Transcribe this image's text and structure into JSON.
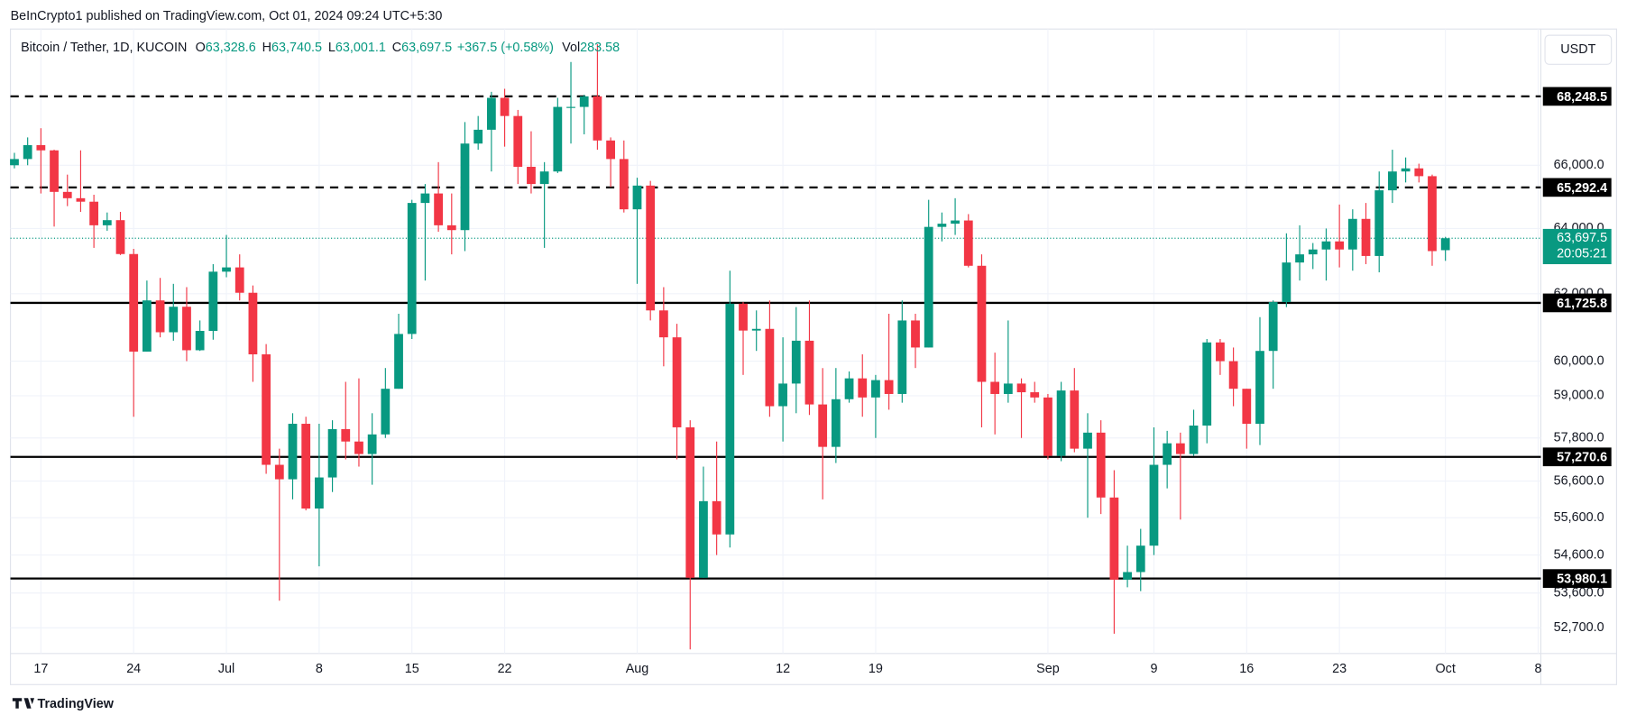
{
  "header": "BeInCrypto1 published on TradingView.com, Oct 01, 2024 09:24 UTC+5:30",
  "footer": "TradingView",
  "currency_button": "USDT",
  "chart_data": {
    "type": "candlestick",
    "symbol": "Bitcoin / Tether, 1D, KUCOIN",
    "legend": [
      {
        "key": "O",
        "value": 63328.6,
        "label": "63,328.6"
      },
      {
        "key": "H",
        "value": 63740.5,
        "label": "63,740.5"
      },
      {
        "key": "L",
        "value": 63001.1,
        "label": "63,001.1"
      },
      {
        "key": "C",
        "value": 63697.5,
        "label": "63,697.5"
      }
    ],
    "change": "+367.5 (+0.58%)",
    "volume_key": "Vol",
    "volume": 283.58,
    "up_color": "#089981",
    "down_color": "#f23645",
    "log_scale": true,
    "grid": true,
    "xlim": [
      -0.3,
      115.2
    ],
    "ylim": [
      52100,
      70450
    ],
    "xticks": [
      {
        "value": 2,
        "label": "17"
      },
      {
        "value": 9,
        "label": "24"
      },
      {
        "value": 16,
        "label": "Jul"
      },
      {
        "value": 23,
        "label": "8"
      },
      {
        "value": 30,
        "label": "15"
      },
      {
        "value": 37,
        "label": "22"
      },
      {
        "value": 47,
        "label": "Aug"
      },
      {
        "value": 58,
        "label": "12"
      },
      {
        "value": 65,
        "label": "19"
      },
      {
        "value": 78,
        "label": "Sep"
      },
      {
        "value": 86,
        "label": "9"
      },
      {
        "value": 93,
        "label": "16"
      },
      {
        "value": 100,
        "label": "23"
      },
      {
        "value": 108,
        "label": "Oct"
      },
      {
        "value": 115,
        "label": "8"
      }
    ],
    "yticks": [
      {
        "value": 66000,
        "label": "66,000.0"
      },
      {
        "value": 64000,
        "label": "64,000.0"
      },
      {
        "value": 62000,
        "label": "62,000.0"
      },
      {
        "value": 60000,
        "label": "60,000.0"
      },
      {
        "value": 59000,
        "label": "59,000.0"
      },
      {
        "value": 57800,
        "label": "57,800.0"
      },
      {
        "value": 56600,
        "label": "56,600.0"
      },
      {
        "value": 55600,
        "label": "55,600.0"
      },
      {
        "value": 54600,
        "label": "54,600.0"
      },
      {
        "value": 53600,
        "label": "53,600.0"
      },
      {
        "value": 52700,
        "label": "52,700.0"
      }
    ],
    "levels": [
      {
        "value": 68248.5,
        "label": "68,248.5",
        "style": "dashed"
      },
      {
        "value": 65292.4,
        "label": "65,292.4",
        "style": "dashed"
      },
      {
        "value": 61725.8,
        "label": "61,725.8",
        "style": "solid"
      },
      {
        "value": 57270.6,
        "label": "57,270.6",
        "style": "solid"
      },
      {
        "value": 53980.1,
        "label": "53,980.1",
        "style": "solid"
      }
    ],
    "last_price": {
      "value": 63697.5,
      "label": "63,697.5",
      "countdown": "20:05:21"
    },
    "open": [
      66000,
      66200,
      66650,
      66480,
      65150,
      64950,
      64840,
      64100,
      64260,
      63210,
      60280,
      61800,
      60850,
      61610,
      60320,
      60890,
      62670,
      62800,
      62030,
      60200,
      57050,
      56650,
      58200,
      55850,
      56700,
      58050,
      57700,
      57350,
      57900,
      59200,
      60800,
      64800,
      65100,
      64100,
      63950,
      66700,
      67150,
      68200,
      67600,
      65950,
      65400,
      65800,
      67900,
      67900,
      68250,
      66800,
      66200,
      64600,
      65350,
      61500,
      60700,
      58100,
      54000,
      56050,
      55150,
      61700,
      60900,
      60950,
      58700,
      59350,
      60600,
      58750,
      57550,
      58900,
      59500,
      58950,
      59450,
      59050,
      61200,
      60400,
      64050,
      64150,
      64250,
      62850,
      59400,
      59050,
      59350,
      59100,
      58950,
      57300,
      59150,
      57500,
      57950,
      56150,
      53950,
      54150,
      54850,
      57050,
      57650,
      57350,
      58150,
      60550,
      60000,
      59200,
      58200,
      60300,
      61750,
      62950,
      63200,
      63350,
      63600,
      63350,
      64300,
      63150,
      65200,
      65800,
      65900,
      65650,
      63328.6
    ],
    "high": [
      66400,
      66900,
      67200,
      66500,
      65700,
      66480,
      65060,
      64500,
      64520,
      63370,
      62400,
      62480,
      62300,
      62200,
      61200,
      62900,
      63800,
      63200,
      62250,
      60500,
      57500,
      58500,
      58400,
      58200,
      58300,
      59400,
      59500,
      58500,
      59800,
      61400,
      64900,
      65400,
      66100,
      65100,
      67400,
      67600,
      68400,
      68500,
      67800,
      67100,
      66100,
      68200,
      69400,
      68300,
      70000,
      66900,
      66800,
      65600,
      65500,
      62200,
      61100,
      58300,
      57000,
      57700,
      62700,
      61750,
      61500,
      61800,
      60700,
      61600,
      61800,
      59800,
      59800,
      59700,
      60200,
      59600,
      61400,
      61800,
      61400,
      64900,
      64500,
      64950,
      64450,
      63200,
      60250,
      61200,
      59500,
      59400,
      59050,
      59400,
      59800,
      58500,
      58300,
      56900,
      54850,
      55300,
      58100,
      58000,
      57950,
      58600,
      60650,
      60650,
      60400,
      59200,
      61300,
      61800,
      63850,
      64100,
      63550,
      64000,
      64750,
      64600,
      64800,
      65800,
      66500,
      66250,
      66050,
      65700,
      63740.5
    ],
    "low": [
      65900,
      66000,
      65100,
      64060,
      64700,
      64520,
      63400,
      63930,
      63180,
      58400,
      60280,
      60700,
      60600,
      60000,
      60300,
      60630,
      62500,
      61800,
      59400,
      56800,
      53400,
      56100,
      55800,
      54300,
      56300,
      57200,
      57000,
      56500,
      57800,
      59200,
      60650,
      62400,
      63900,
      63200,
      63300,
      66500,
      65800,
      66600,
      65400,
      65100,
      63400,
      65750,
      66700,
      67000,
      66500,
      65300,
      64500,
      62300,
      61200,
      59850,
      57200,
      52150,
      54000,
      54600,
      54800,
      59600,
      60300,
      58400,
      57700,
      58500,
      58450,
      56100,
      57100,
      58800,
      58400,
      57800,
      58600,
      58800,
      59800,
      60400,
      63600,
      63800,
      62800,
      58100,
      57900,
      58800,
      57800,
      58800,
      57200,
      57150,
      57400,
      55600,
      55700,
      52550,
      53750,
      53650,
      54600,
      56400,
      55550,
      57300,
      57650,
      59600,
      58700,
      57500,
      57600,
      59200,
      61600,
      62400,
      62750,
      62400,
      62800,
      62700,
      62900,
      62650,
      64800,
      65450,
      65450,
      62850,
      63001.1
    ],
    "close": [
      66200,
      66650,
      66480,
      65150,
      64950,
      64840,
      64100,
      64260,
      63210,
      60280,
      61800,
      60850,
      61610,
      60320,
      60890,
      62670,
      62800,
      62030,
      60200,
      57050,
      56650,
      58200,
      55850,
      56700,
      58050,
      57700,
      57350,
      57900,
      59200,
      60800,
      64800,
      65100,
      64100,
      63950,
      66700,
      67150,
      68200,
      67600,
      65950,
      65400,
      65800,
      67900,
      67900,
      68250,
      66800,
      66200,
      64600,
      65350,
      61500,
      60700,
      58100,
      54000,
      56050,
      55150,
      61700,
      60900,
      60950,
      58700,
      59350,
      60600,
      58750,
      57550,
      58900,
      59500,
      58950,
      59450,
      59050,
      61200,
      60400,
      64050,
      64150,
      64250,
      62850,
      59400,
      59050,
      59350,
      59100,
      58950,
      57300,
      59150,
      57500,
      57950,
      56150,
      53950,
      54150,
      54850,
      57050,
      57650,
      57350,
      58150,
      60550,
      60000,
      59200,
      58200,
      60300,
      61750,
      62950,
      63200,
      63350,
      63600,
      63350,
      64300,
      63150,
      65200,
      65800,
      65900,
      65650,
      63300,
      63697.5
    ]
  }
}
